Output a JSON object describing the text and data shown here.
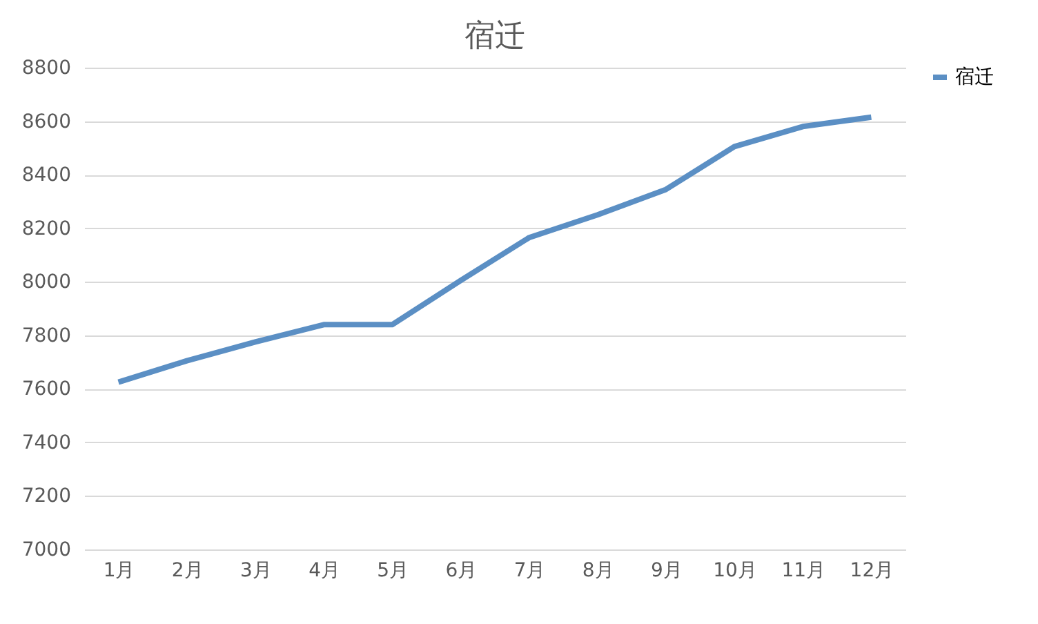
{
  "chart_data": {
    "type": "line",
    "title": "宿迁",
    "categories": [
      "1月",
      "2月",
      "3月",
      "4月",
      "5月",
      "6月",
      "7月",
      "8月",
      "9月",
      "10月",
      "11月",
      "12月"
    ],
    "series": [
      {
        "name": "宿迁",
        "color": "#5b8fc4",
        "values": [
          7625,
          7705,
          7775,
          7840,
          7840,
          8005,
          8165,
          8250,
          8345,
          8505,
          8580,
          8615
        ]
      }
    ],
    "ylim": [
      7000,
      8800
    ],
    "yticks": [
      7000,
      7200,
      7400,
      7600,
      7800,
      8000,
      8200,
      8400,
      8600,
      8800
    ],
    "grid": "y",
    "legend": "right",
    "marker": "none",
    "line_style": "solid"
  }
}
